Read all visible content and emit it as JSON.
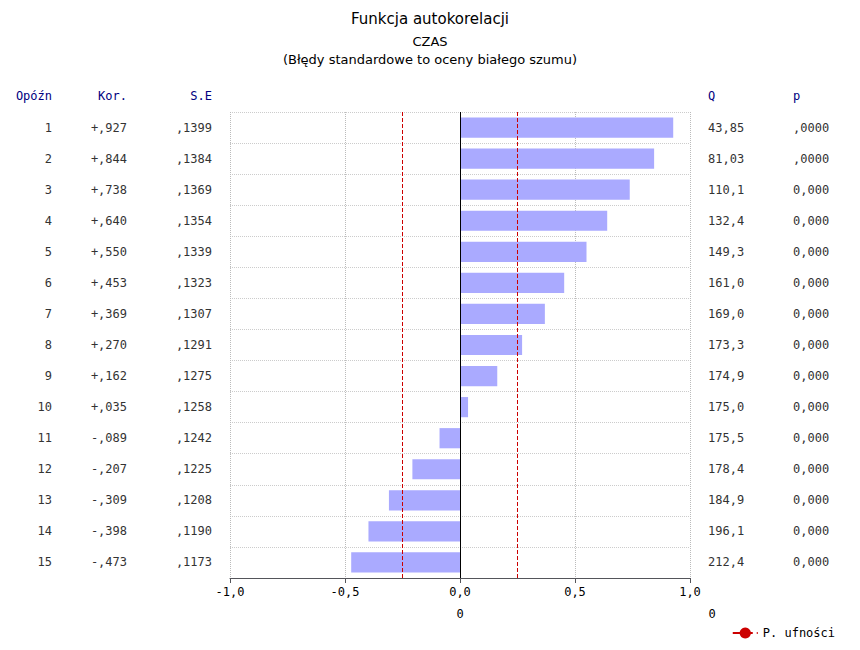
{
  "chart_data": {
    "type": "bar",
    "orientation": "horizontal",
    "title": "Funkcja autokorelacji",
    "subtitle": [
      "CZAS",
      "(Błędy standardowe to oceny białego szumu)"
    ],
    "ylabel": "Opóźn",
    "categories": [
      1,
      2,
      3,
      4,
      5,
      6,
      7,
      8,
      9,
      10,
      11,
      12,
      13,
      14,
      15
    ],
    "values": [
      0.927,
      0.844,
      0.738,
      0.64,
      0.55,
      0.453,
      0.369,
      0.27,
      0.162,
      0.035,
      -0.089,
      -0.207,
      -0.309,
      -0.398,
      -0.473
    ],
    "color": "#AAAAFF",
    "columns": [
      {
        "name": "Kor.",
        "labels": [
          "+,927",
          "+,844",
          "+,738",
          "+,640",
          "+,550",
          "+,453",
          "+,369",
          "+,270",
          "+,162",
          "+,035",
          "-,089",
          "-,207",
          "-,309",
          "-,398",
          "-,473"
        ]
      },
      {
        "name": "S.E",
        "labels": [
          ",1399",
          ",1384",
          ",1369",
          ",1354",
          ",1339",
          ",1323",
          ",1307",
          ",1291",
          ",1275",
          ",1258",
          ",1242",
          ",1225",
          ",1208",
          ",1190",
          ",1173"
        ]
      },
      {
        "name": "Q",
        "labels": [
          "43,85",
          "81,03",
          "110,1",
          "132,4",
          "149,3",
          "161,0",
          "169,0",
          "173,3",
          "174,9",
          "175,0",
          "175,5",
          "178,4",
          "184,9",
          "196,1",
          "212,4"
        ]
      },
      {
        "name": "p",
        "labels": [
          ",0000",
          ",0000",
          "0,000",
          "0,000",
          "0,000",
          "0,000",
          "0,000",
          "0,000",
          "0,000",
          "0,000",
          "0,000",
          "0,000",
          "0,000",
          "0,000",
          "0,000"
        ]
      }
    ],
    "reference_lines": [
      {
        "name": "P. ufności",
        "color": "#CC0000",
        "line_style": "dashed",
        "x": [
          0.2533,
          -0.2533
        ]
      },
      {
        "color": "#000000",
        "line_style": "solid",
        "x": [
          0.0
        ]
      }
    ],
    "annotations": [
      "0",
      "0"
    ],
    "xlim": [
      -1.0,
      1.0
    ],
    "xticks": [
      {
        "value": -1.0,
        "label": "-1,0"
      },
      {
        "value": -0.5,
        "label": "-0,5"
      },
      {
        "value": 0.0,
        "label": "0,0"
      },
      {
        "value": 0.5,
        "label": "0,5"
      },
      {
        "value": 1.0,
        "label": "1,0"
      }
    ],
    "grid": true,
    "legend": "lower right"
  }
}
